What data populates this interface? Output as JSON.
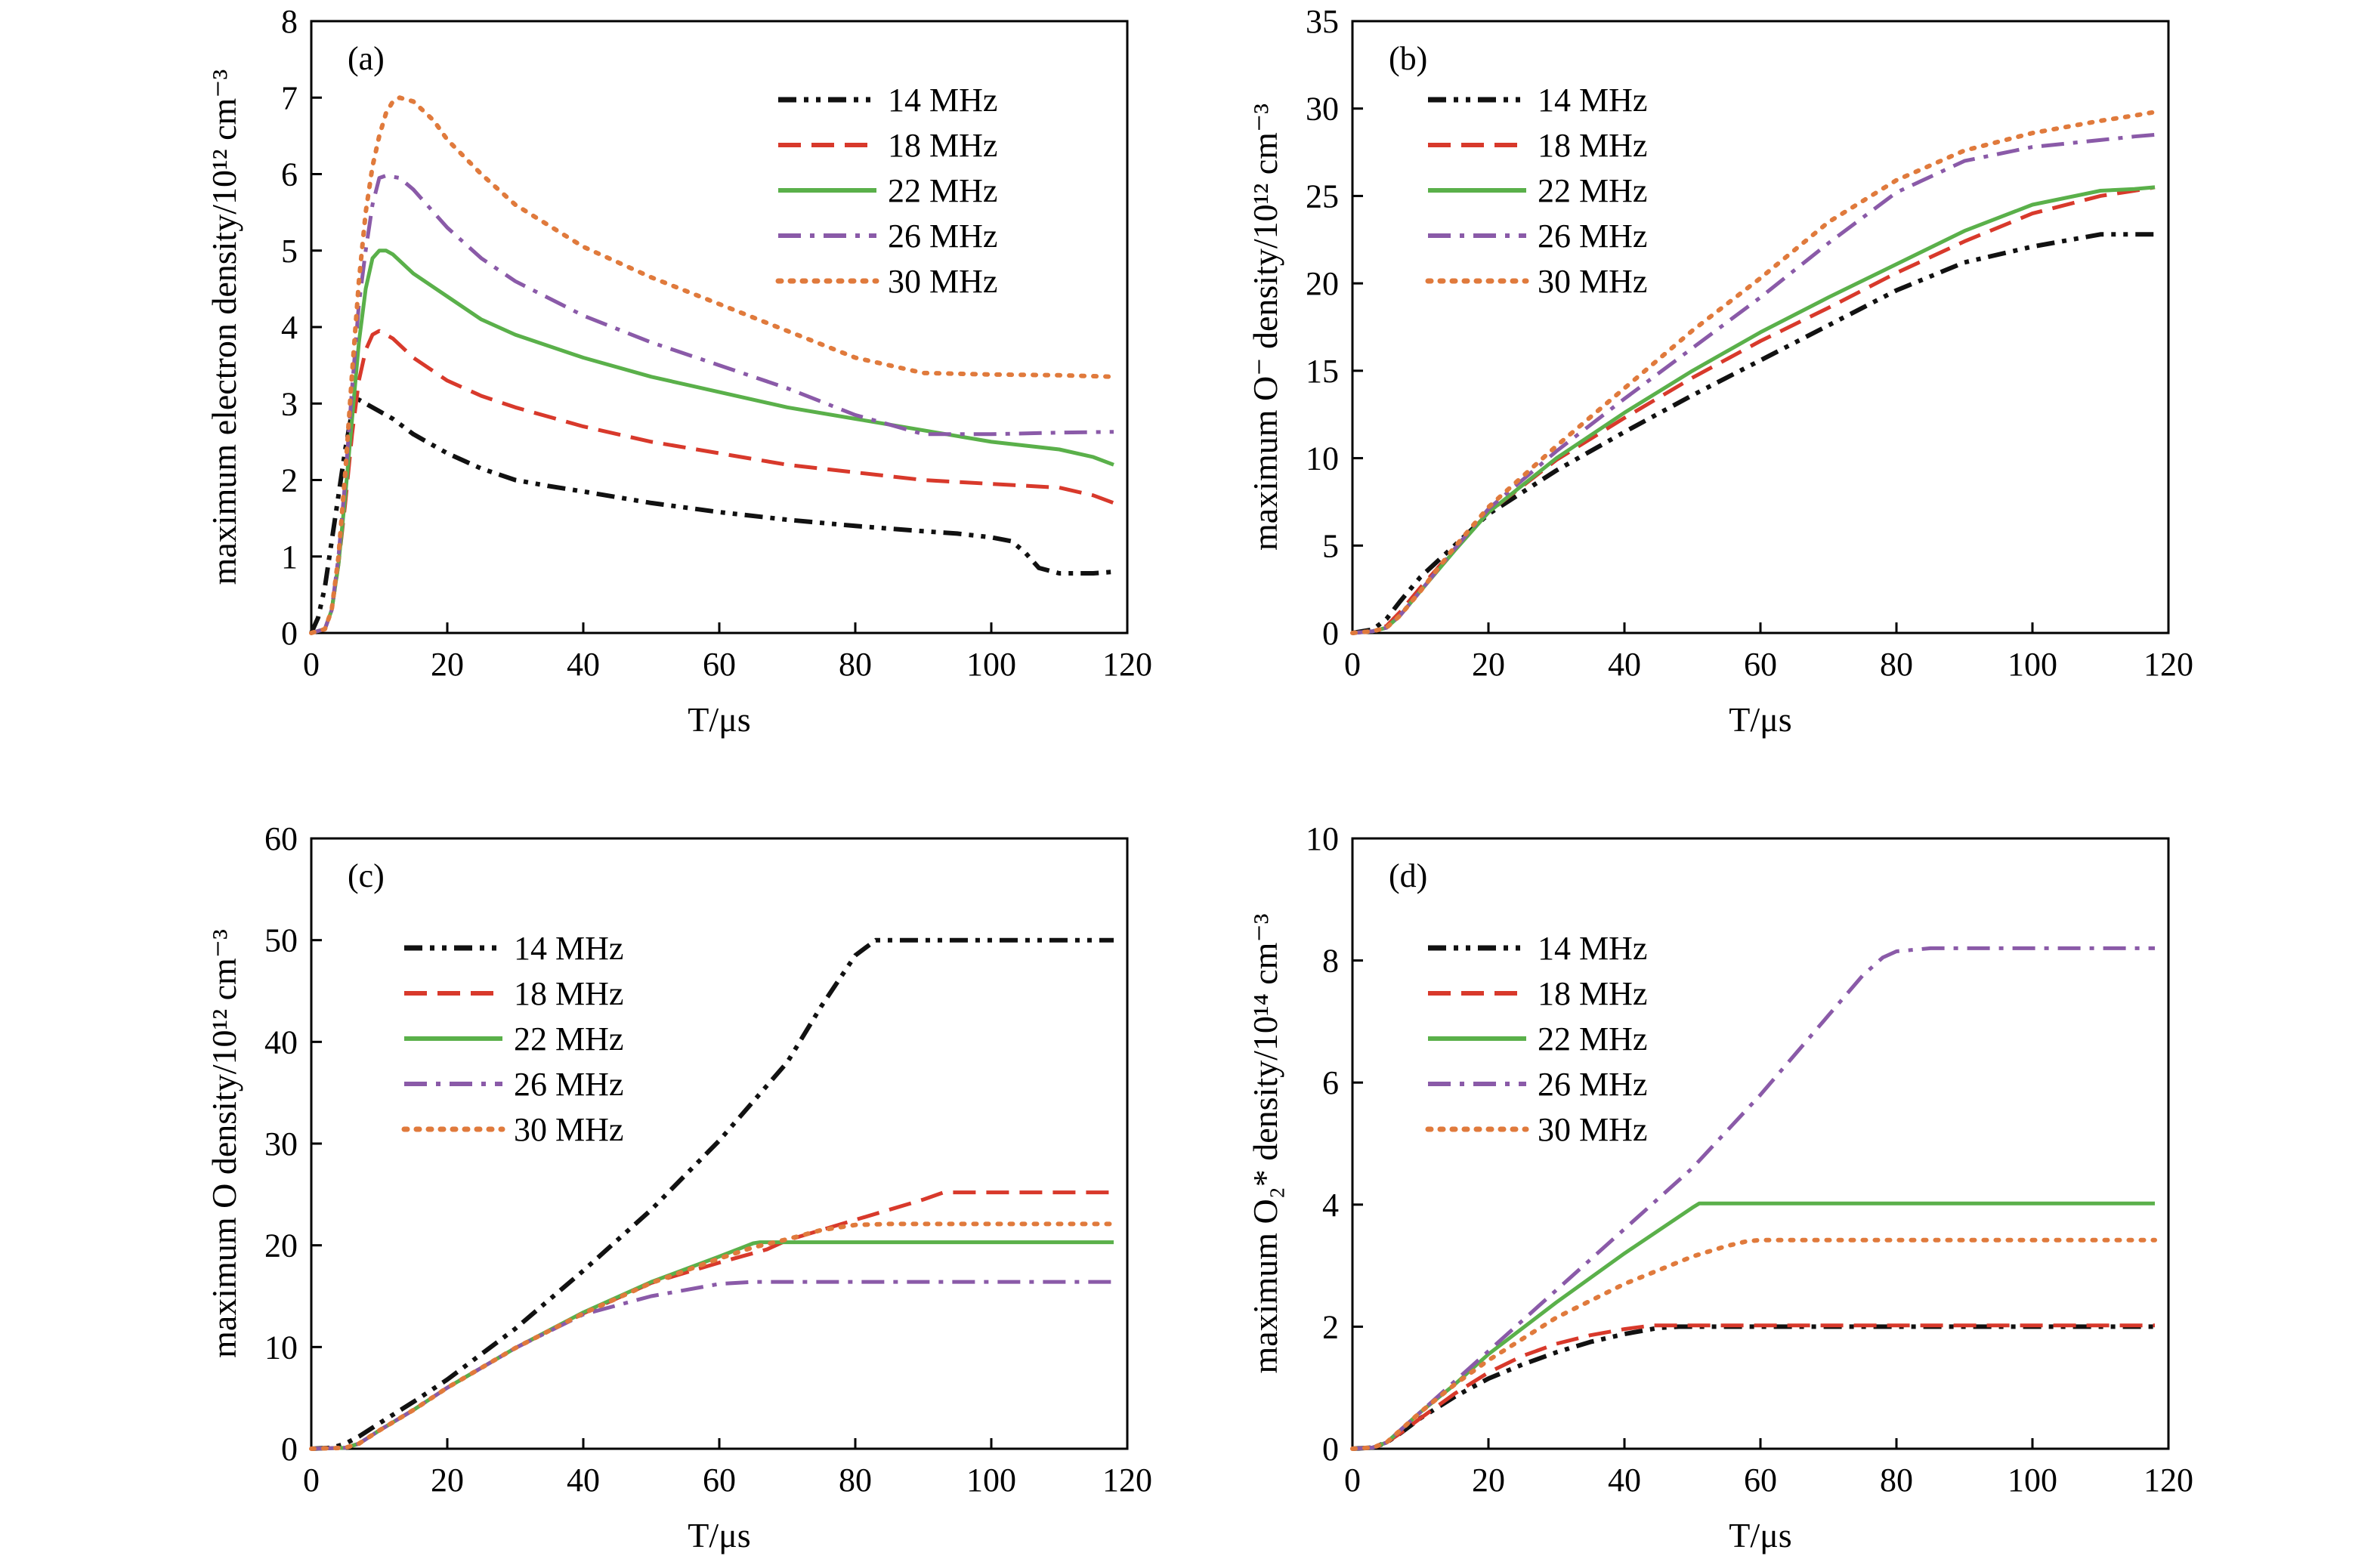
{
  "colors": {
    "14 MHz": "#111111",
    "18 MHz": "#d8392b",
    "22 MHz": "#5ab04a",
    "26 MHz": "#8a5aa8",
    "30 MHz": "#e07a3c"
  },
  "dash": {
    "14 MHz": "dashdotdot",
    "18 MHz": "dashed",
    "22 MHz": "solid",
    "26 MHz": "dashdot",
    "30 MHz": "dotted"
  },
  "chart_data": [
    {
      "type": "line",
      "panel": "(a)",
      "xlabel": "T/μs",
      "ylabel": "maximum electron density/10¹² cm⁻³",
      "xlim": [
        0,
        120
      ],
      "ylim": [
        0,
        8
      ],
      "xticks": [
        0,
        20,
        40,
        60,
        80,
        100,
        120
      ],
      "yticks": [
        0,
        1,
        2,
        3,
        4,
        5,
        6,
        7,
        8
      ],
      "legend": "top-right",
      "series": [
        {
          "name": "14 MHz",
          "x": [
            0,
            1,
            2,
            3,
            4,
            5,
            6,
            7,
            8,
            10,
            12,
            15,
            20,
            25,
            30,
            35,
            40,
            50,
            60,
            70,
            80,
            90,
            95,
            100,
            103,
            105,
            107,
            110,
            115,
            118
          ],
          "y": [
            0,
            0.2,
            0.6,
            1.2,
            1.8,
            2.4,
            2.9,
            3.05,
            3.0,
            2.9,
            2.8,
            2.6,
            2.35,
            2.15,
            2.0,
            1.92,
            1.85,
            1.7,
            1.58,
            1.48,
            1.4,
            1.33,
            1.3,
            1.25,
            1.2,
            1.05,
            0.85,
            0.78,
            0.78,
            0.8
          ]
        },
        {
          "name": "18 MHz",
          "x": [
            0,
            2,
            3,
            4,
            5,
            6,
            7,
            8,
            9,
            10,
            12,
            15,
            20,
            25,
            30,
            40,
            50,
            60,
            70,
            80,
            90,
            100,
            110,
            115,
            118
          ],
          "y": [
            0,
            0.05,
            0.3,
            0.9,
            1.7,
            2.6,
            3.3,
            3.7,
            3.9,
            3.95,
            3.85,
            3.6,
            3.3,
            3.1,
            2.95,
            2.7,
            2.5,
            2.35,
            2.2,
            2.1,
            2.0,
            1.95,
            1.9,
            1.8,
            1.7
          ]
        },
        {
          "name": "22 MHz",
          "x": [
            0,
            2,
            3,
            4,
            5,
            6,
            7,
            8,
            9,
            10,
            11,
            12,
            15,
            20,
            25,
            30,
            40,
            50,
            60,
            70,
            80,
            90,
            100,
            110,
            115,
            118
          ],
          "y": [
            0,
            0.05,
            0.3,
            0.9,
            1.8,
            2.8,
            3.8,
            4.5,
            4.9,
            5.0,
            5.0,
            4.95,
            4.7,
            4.4,
            4.1,
            3.9,
            3.6,
            3.35,
            3.15,
            2.95,
            2.8,
            2.65,
            2.5,
            2.4,
            2.3,
            2.2
          ]
        },
        {
          "name": "26 MHz",
          "x": [
            0,
            2,
            3,
            4,
            5,
            6,
            7,
            8,
            9,
            10,
            11,
            13,
            15,
            20,
            25,
            30,
            40,
            50,
            60,
            70,
            80,
            90,
            92,
            95,
            100,
            110,
            118
          ],
          "y": [
            0,
            0.05,
            0.3,
            1.0,
            2.0,
            3.2,
            4.3,
            5.0,
            5.6,
            5.95,
            5.98,
            5.95,
            5.8,
            5.3,
            4.9,
            4.6,
            4.15,
            3.8,
            3.5,
            3.2,
            2.85,
            2.6,
            2.6,
            2.6,
            2.6,
            2.62,
            2.63
          ]
        },
        {
          "name": "30 MHz",
          "x": [
            0,
            2,
            3,
            4,
            5,
            6,
            7,
            8,
            9,
            10,
            11,
            12,
            13,
            15,
            18,
            20,
            25,
            30,
            40,
            50,
            60,
            70,
            80,
            90,
            100,
            110,
            118
          ],
          "y": [
            0,
            0.05,
            0.3,
            1.0,
            2.1,
            3.4,
            4.6,
            5.5,
            6.1,
            6.5,
            6.8,
            6.95,
            7.0,
            6.95,
            6.7,
            6.45,
            6.0,
            5.6,
            5.05,
            4.65,
            4.3,
            3.95,
            3.6,
            3.4,
            3.38,
            3.37,
            3.35
          ]
        }
      ]
    },
    {
      "type": "line",
      "panel": "(b)",
      "xlabel": "T/μs",
      "ylabel": "maximum O⁻ density/10¹² cm⁻³",
      "xlim": [
        0,
        120
      ],
      "ylim": [
        0,
        35
      ],
      "xticks": [
        0,
        20,
        40,
        60,
        80,
        100,
        120
      ],
      "yticks": [
        0,
        5,
        10,
        15,
        20,
        25,
        30,
        35
      ],
      "legend": "top-left",
      "series": [
        {
          "name": "14 MHz",
          "x": [
            0,
            3,
            5,
            7,
            10,
            15,
            20,
            30,
            40,
            50,
            60,
            70,
            80,
            90,
            100,
            110,
            115,
            118
          ],
          "y": [
            0,
            0.2,
            0.8,
            1.8,
            3.2,
            5.0,
            6.8,
            9.3,
            11.5,
            13.6,
            15.6,
            17.6,
            19.6,
            21.2,
            22.1,
            22.8,
            22.8,
            22.8
          ]
        },
        {
          "name": "18 MHz",
          "x": [
            0,
            3,
            5,
            7,
            10,
            15,
            20,
            30,
            40,
            50,
            60,
            70,
            80,
            90,
            100,
            110,
            115,
            118
          ],
          "y": [
            0,
            0.1,
            0.4,
            1.2,
            2.6,
            4.8,
            6.9,
            9.9,
            12.3,
            14.6,
            16.7,
            18.6,
            20.6,
            22.4,
            24.0,
            25.0,
            25.3,
            25.5
          ]
        },
        {
          "name": "22 MHz",
          "x": [
            0,
            3,
            5,
            7,
            10,
            15,
            20,
            30,
            40,
            50,
            60,
            70,
            80,
            90,
            100,
            110,
            115,
            118
          ],
          "y": [
            0,
            0.1,
            0.3,
            1.0,
            2.4,
            4.7,
            6.9,
            10.0,
            12.6,
            15.0,
            17.2,
            19.2,
            21.1,
            23.0,
            24.5,
            25.3,
            25.4,
            25.5
          ]
        },
        {
          "name": "26 MHz",
          "x": [
            0,
            3,
            5,
            7,
            10,
            15,
            20,
            30,
            40,
            50,
            60,
            70,
            80,
            90,
            100,
            110,
            115,
            118
          ],
          "y": [
            0,
            0.1,
            0.3,
            1.0,
            2.4,
            4.8,
            7.1,
            10.4,
            13.4,
            16.3,
            19.2,
            22.3,
            25.2,
            27.0,
            27.8,
            28.2,
            28.4,
            28.5
          ]
        },
        {
          "name": "30 MHz",
          "x": [
            0,
            3,
            5,
            7,
            10,
            15,
            20,
            30,
            40,
            50,
            60,
            70,
            80,
            90,
            100,
            110,
            115,
            118
          ],
          "y": [
            0,
            0.1,
            0.3,
            1.0,
            2.4,
            4.9,
            7.2,
            10.7,
            14.0,
            17.3,
            20.3,
            23.5,
            25.9,
            27.6,
            28.6,
            29.3,
            29.6,
            29.8
          ]
        }
      ]
    },
    {
      "type": "line",
      "panel": "(c)",
      "xlabel": "T/μs",
      "ylabel": "maximum O density/10¹² cm⁻³",
      "xlim": [
        0,
        120
      ],
      "ylim": [
        0,
        60
      ],
      "xticks": [
        0,
        20,
        40,
        60,
        80,
        100,
        120
      ],
      "yticks": [
        0,
        10,
        20,
        30,
        40,
        50,
        60
      ],
      "legend": "top-left",
      "series": [
        {
          "name": "14 MHz",
          "x": [
            0,
            3,
            5,
            7,
            10,
            15,
            20,
            30,
            40,
            50,
            60,
            70,
            75,
            80,
            83,
            85,
            90,
            100,
            110,
            118
          ],
          "y": [
            0,
            0.1,
            0.5,
            1.2,
            2.5,
            4.6,
            6.8,
            11.8,
            17.5,
            23.5,
            30.3,
            38.0,
            43.5,
            48.5,
            50.0,
            50.0,
            50.0,
            50.0,
            50.0,
            50.0
          ]
        },
        {
          "name": "18 MHz",
          "x": [
            0,
            5,
            7,
            10,
            15,
            20,
            30,
            40,
            50,
            60,
            67,
            70,
            80,
            90,
            93,
            95,
            100,
            110,
            118
          ],
          "y": [
            0,
            0.1,
            0.5,
            1.8,
            3.8,
            6.0,
            9.9,
            13.3,
            16.3,
            18.3,
            19.6,
            20.5,
            22.5,
            24.5,
            25.2,
            25.2,
            25.2,
            25.2,
            25.2
          ]
        },
        {
          "name": "22 MHz",
          "x": [
            0,
            5,
            7,
            10,
            15,
            20,
            30,
            40,
            50,
            60,
            65,
            66,
            70,
            80,
            90,
            100,
            110,
            118
          ],
          "y": [
            0,
            0.1,
            0.5,
            1.8,
            3.8,
            6.0,
            9.9,
            13.4,
            16.4,
            18.9,
            20.2,
            20.3,
            20.3,
            20.3,
            20.3,
            20.3,
            20.3,
            20.3
          ]
        },
        {
          "name": "26 MHz",
          "x": [
            0,
            5,
            7,
            10,
            15,
            20,
            30,
            40,
            50,
            60,
            65,
            70,
            80,
            90,
            100,
            110,
            118
          ],
          "y": [
            0,
            0.1,
            0.5,
            1.8,
            3.8,
            6.0,
            9.9,
            13.2,
            15.0,
            16.2,
            16.4,
            16.4,
            16.4,
            16.4,
            16.4,
            16.4,
            16.4
          ]
        },
        {
          "name": "30 MHz",
          "x": [
            0,
            5,
            7,
            10,
            15,
            20,
            30,
            40,
            50,
            60,
            65,
            70,
            75,
            80,
            85,
            90,
            100,
            110,
            118
          ],
          "y": [
            0,
            0.1,
            0.5,
            1.8,
            3.8,
            6.0,
            9.9,
            13.3,
            16.3,
            18.7,
            19.8,
            20.6,
            21.5,
            22.0,
            22.1,
            22.1,
            22.1,
            22.1,
            22.1
          ]
        }
      ]
    },
    {
      "type": "line",
      "panel": "(d)",
      "xlabel": "T/μs",
      "ylabel": "maximum O₂* density/10¹⁴ cm⁻³",
      "xlim": [
        0,
        120
      ],
      "ylim": [
        0,
        10
      ],
      "xticks": [
        0,
        20,
        40,
        60,
        80,
        100,
        120
      ],
      "yticks": [
        0,
        2,
        4,
        6,
        8,
        10
      ],
      "legend": "top-left",
      "series": [
        {
          "name": "14 MHz",
          "x": [
            0,
            3,
            5,
            7,
            10,
            15,
            20,
            25,
            30,
            35,
            40,
            45,
            48,
            50,
            60,
            80,
            100,
            118
          ],
          "y": [
            0,
            0.02,
            0.1,
            0.25,
            0.5,
            0.85,
            1.15,
            1.38,
            1.58,
            1.75,
            1.88,
            1.98,
            2.0,
            2.0,
            2.0,
            2.0,
            2.0,
            2.0
          ]
        },
        {
          "name": "18 MHz",
          "x": [
            0,
            3,
            5,
            7,
            10,
            15,
            20,
            25,
            30,
            35,
            40,
            44,
            46,
            50,
            60,
            80,
            100,
            118
          ],
          "y": [
            0,
            0.02,
            0.1,
            0.25,
            0.5,
            0.9,
            1.25,
            1.52,
            1.72,
            1.86,
            1.96,
            2.02,
            2.02,
            2.02,
            2.02,
            2.02,
            2.02,
            2.02
          ]
        },
        {
          "name": "22 MHz",
          "x": [
            0,
            3,
            5,
            7,
            10,
            15,
            20,
            30,
            40,
            50,
            51,
            60,
            80,
            100,
            118
          ],
          "y": [
            0,
            0.02,
            0.1,
            0.3,
            0.6,
            1.05,
            1.55,
            2.4,
            3.2,
            3.95,
            4.02,
            4.02,
            4.02,
            4.02,
            4.02
          ]
        },
        {
          "name": "26 MHz",
          "x": [
            0,
            3,
            5,
            7,
            10,
            15,
            20,
            30,
            40,
            50,
            60,
            70,
            75,
            78,
            80,
            85,
            90,
            100,
            110,
            118
          ],
          "y": [
            0,
            0.02,
            0.1,
            0.3,
            0.6,
            1.1,
            1.6,
            2.6,
            3.6,
            4.6,
            5.8,
            7.1,
            7.75,
            8.05,
            8.15,
            8.2,
            8.2,
            8.2,
            8.2,
            8.2
          ]
        },
        {
          "name": "30 MHz",
          "x": [
            0,
            3,
            5,
            7,
            10,
            15,
            20,
            25,
            30,
            40,
            50,
            55,
            58,
            60,
            70,
            80,
            100,
            118
          ],
          "y": [
            0,
            0.02,
            0.1,
            0.3,
            0.6,
            1.05,
            1.45,
            1.8,
            2.15,
            2.7,
            3.15,
            3.32,
            3.4,
            3.42,
            3.42,
            3.42,
            3.42,
            3.42
          ]
        }
      ]
    }
  ]
}
